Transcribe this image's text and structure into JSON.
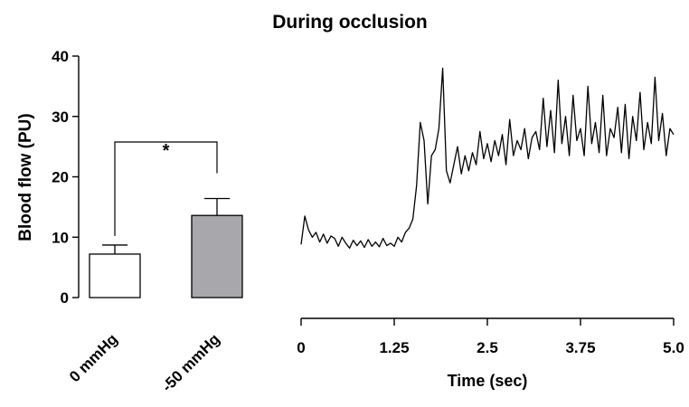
{
  "title": "During occlusion",
  "chart_data": [
    {
      "type": "bar",
      "ylabel": "Blood flow (PU)",
      "ylim": [
        0,
        40
      ],
      "yticks": [
        "0",
        "10",
        "20",
        "30",
        "40"
      ],
      "categories": [
        "0 mmHg",
        "-50 mmHg"
      ],
      "values": [
        7.2,
        13.6
      ],
      "errors": [
        1.5,
        2.8
      ],
      "bar_colors": [
        "#ffffff",
        "#a8a8ac"
      ],
      "significance": {
        "label": "*",
        "between": [
          0,
          1
        ]
      }
    },
    {
      "type": "line",
      "xlabel": "Time (sec)",
      "xlim": [
        0,
        5.0
      ],
      "xticks": [
        "0",
        "1.25",
        "2.5",
        "3.75",
        "5.0"
      ],
      "ylim": [
        0,
        40
      ],
      "x": [
        0,
        0.05,
        0.1,
        0.15,
        0.2,
        0.25,
        0.3,
        0.35,
        0.4,
        0.45,
        0.5,
        0.55,
        0.6,
        0.65,
        0.7,
        0.75,
        0.8,
        0.85,
        0.9,
        0.95,
        1.0,
        1.05,
        1.1,
        1.15,
        1.2,
        1.25,
        1.3,
        1.35,
        1.4,
        1.45,
        1.5,
        1.55,
        1.6,
        1.65,
        1.7,
        1.75,
        1.8,
        1.85,
        1.9,
        1.95,
        2.0,
        2.05,
        2.1,
        2.15,
        2.2,
        2.25,
        2.3,
        2.35,
        2.4,
        2.45,
        2.5,
        2.55,
        2.6,
        2.65,
        2.7,
        2.75,
        2.8,
        2.85,
        2.9,
        2.95,
        3.0,
        3.05,
        3.1,
        3.15,
        3.2,
        3.25,
        3.3,
        3.35,
        3.4,
        3.45,
        3.5,
        3.55,
        3.6,
        3.65,
        3.7,
        3.75,
        3.8,
        3.85,
        3.9,
        3.95,
        4.0,
        4.05,
        4.1,
        4.15,
        4.2,
        4.25,
        4.3,
        4.35,
        4.4,
        4.45,
        4.5,
        4.55,
        4.6,
        4.65,
        4.7,
        4.75,
        4.8,
        4.85,
        4.9,
        4.95,
        5.0
      ],
      "values": [
        8.8,
        13.5,
        11.2,
        10.0,
        10.8,
        9.2,
        10.5,
        9.0,
        10.2,
        9.8,
        8.5,
        10.0,
        9.0,
        8.2,
        9.5,
        8.6,
        9.4,
        8.3,
        9.6,
        8.5,
        9.2,
        8.4,
        9.8,
        8.6,
        9.0,
        8.5,
        10.0,
        9.2,
        10.8,
        11.5,
        13.0,
        18.5,
        29.0,
        26.0,
        15.5,
        23.5,
        24.5,
        28.0,
        38.0,
        21.0,
        19.0,
        22.0,
        25.0,
        20.5,
        23.5,
        21.0,
        24.0,
        22.0,
        27.5,
        23.0,
        25.5,
        22.5,
        26.0,
        23.5,
        27.0,
        22.0,
        29.5,
        23.5,
        26.0,
        24.5,
        28.0,
        23.0,
        26.5,
        27.5,
        24.5,
        33.0,
        25.0,
        31.0,
        24.0,
        36.0,
        25.5,
        30.0,
        23.5,
        33.5,
        26.0,
        28.0,
        23.5,
        35.0,
        25.5,
        29.0,
        24.0,
        33.5,
        23.5,
        28.0,
        26.5,
        31.5,
        24.0,
        32.0,
        23.0,
        30.0,
        26.0,
        34.0,
        24.5,
        29.0,
        25.5,
        36.5,
        26.0,
        30.5,
        23.5,
        28.0,
        27.0
      ]
    }
  ]
}
